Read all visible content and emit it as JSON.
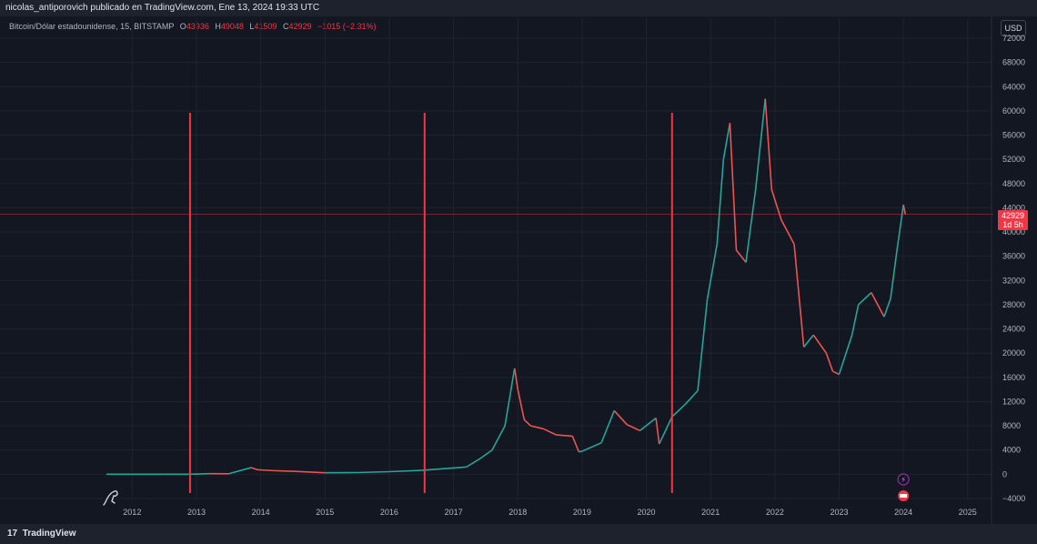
{
  "header": {
    "published_by": "nicolas_antiporovich publicado en TradingView.com, Ene 13, 2024 19:33 UTC"
  },
  "legend": {
    "symbol": "Bitcoin/Dólar estadounidense, 15, BITSTAMP",
    "o_label": "O",
    "o_value": "43936",
    "h_label": "H",
    "h_value": "49048",
    "l_label": "L",
    "l_value": "41509",
    "c_label": "C",
    "c_value": "42929",
    "change": "−1015 (−2.31%)"
  },
  "currency_button": "USD",
  "price_tag": {
    "price": "42929",
    "countdown": "1d 5h"
  },
  "footer": {
    "brand": "TradingView",
    "logo_glyph": "17"
  },
  "colors": {
    "background": "#131722",
    "up": "#26a69a",
    "down": "#ef5350",
    "marker_line": "#f23645"
  },
  "chart_data": {
    "type": "line",
    "title": "Bitcoin/Dólar estadounidense, 15, BITSTAMP",
    "xlabel": "",
    "ylabel": "",
    "x_ticks": [
      "2012",
      "2013",
      "2014",
      "2015",
      "2016",
      "2017",
      "2018",
      "2019",
      "2020",
      "2021",
      "2022",
      "2023",
      "2024",
      "2025"
    ],
    "y_ticks": [
      -4000,
      0,
      4000,
      8000,
      12000,
      16000,
      20000,
      24000,
      28000,
      32000,
      36000,
      40000,
      44000,
      48000,
      52000,
      56000,
      60000,
      64000,
      68000,
      72000
    ],
    "ylim": [
      -4000,
      72000
    ],
    "xlim": [
      2011.5,
      2025.3
    ],
    "grid": true,
    "current_price": 42929,
    "series": [
      {
        "x": [
          2011.6,
          2012.0,
          2012.5,
          2012.9,
          2013.2,
          2013.5,
          2013.85,
          2013.95,
          2014.2,
          2014.5,
          2015.0,
          2015.5,
          2016.0,
          2016.5,
          2016.9,
          2017.2,
          2017.4,
          2017.6,
          2017.8,
          2017.95,
          2018.0,
          2018.1,
          2018.2,
          2018.4,
          2018.6,
          2018.85,
          2018.95,
          2019.0,
          2019.3,
          2019.5,
          2019.7,
          2019.9,
          2020.15,
          2020.2,
          2020.4,
          2020.6,
          2020.8,
          2020.95,
          2021.1,
          2021.2,
          2021.3,
          2021.4,
          2021.55,
          2021.7,
          2021.85,
          2021.95,
          2022.1,
          2022.3,
          2022.45,
          2022.6,
          2022.8,
          2022.9,
          2023.0,
          2023.2,
          2023.3,
          2023.5,
          2023.7,
          2023.8,
          2023.9,
          2024.0,
          2024.03
        ],
        "values": [
          5,
          7,
          12,
          13,
          100,
          80,
          1100,
          750,
          600,
          500,
          250,
          280,
          430,
          650,
          960,
          1200,
          2500,
          4000,
          8000,
          17500,
          14000,
          9000,
          8000,
          7500,
          6500,
          6300,
          3700,
          3800,
          5200,
          10500,
          8200,
          7200,
          9300,
          5000,
          9500,
          11500,
          13800,
          29000,
          38000,
          52000,
          58000,
          37000,
          35000,
          47000,
          62000,
          47000,
          42000,
          38000,
          21000,
          23000,
          20000,
          17000,
          16500,
          23000,
          28000,
          30000,
          26000,
          29000,
          37000,
          44500,
          42929
        ]
      }
    ],
    "annotations": {
      "marker_lines_x": [
        2012.9,
        2016.55,
        2020.4
      ]
    }
  }
}
